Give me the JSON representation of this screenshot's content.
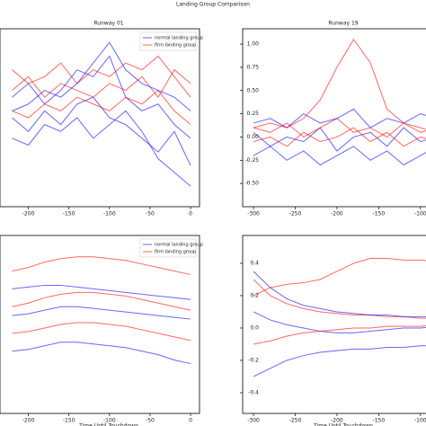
{
  "title": "Landing Group Comparison",
  "chart_data": [
    {
      "type": "line",
      "title": "Runway 01",
      "x": [
        -220,
        -200,
        -180,
        -160,
        -140,
        -120,
        -100,
        -80,
        -60,
        -40,
        -20,
        0
      ],
      "xlim": [
        -235,
        11
      ],
      "xticks": [
        -200,
        -150,
        -100,
        -50,
        0
      ],
      "ylim": [
        -0.5,
        0.8
      ],
      "legend": "upper right",
      "series": [
        {
          "name": "normal landing group",
          "color": "#0000ff",
          "values": [
            0.15,
            0.05,
            0.2,
            0.1,
            0.25,
            0.3,
            0.15,
            0.1,
            0.0,
            -0.1,
            0.05,
            -0.2
          ]
        },
        {
          "name": "firm landing group",
          "color": "#ff0000",
          "values": [
            0.35,
            0.45,
            0.3,
            0.4,
            0.35,
            0.3,
            0.4,
            0.35,
            0.45,
            0.3,
            0.5,
            0.4
          ]
        },
        {
          "name": "normal landing group",
          "color": "#0000ff",
          "values": [
            0.3,
            0.4,
            0.25,
            0.35,
            0.5,
            0.45,
            0.6,
            0.3,
            0.2,
            0.25,
            0.1,
            0.0
          ]
        },
        {
          "name": "firm landing group",
          "color": "#ff0000",
          "values": [
            0.2,
            0.15,
            0.25,
            0.2,
            0.3,
            0.25,
            0.2,
            0.3,
            0.25,
            0.35,
            0.2,
            0.1
          ]
        },
        {
          "name": "normal landing group",
          "color": "#0000ff",
          "values": [
            0.0,
            -0.05,
            0.1,
            0.05,
            0.15,
            0.0,
            0.1,
            0.2,
            0.05,
            -0.15,
            -0.25,
            -0.35
          ]
        },
        {
          "name": "firm landing group",
          "color": "#ff0000",
          "values": [
            0.5,
            0.4,
            0.45,
            0.55,
            0.4,
            0.5,
            0.45,
            0.55,
            0.5,
            0.6,
            0.45,
            0.3
          ]
        },
        {
          "name": "normal landing group",
          "color": "#0000ff",
          "values": [
            0.2,
            0.25,
            0.35,
            0.3,
            0.4,
            0.55,
            0.7,
            0.5,
            0.4,
            0.35,
            0.3,
            0.2
          ]
        }
      ]
    },
    {
      "type": "line",
      "title": "Runway 19",
      "x": [
        -300,
        -280,
        -260,
        -240,
        -220,
        -200,
        -180,
        -160,
        -140,
        -120,
        -100,
        -80
      ],
      "xlim": [
        -313,
        -89
      ],
      "xticks": [
        -300,
        -250,
        -200,
        -150,
        -100
      ],
      "ylim": [
        -0.75,
        1.165
      ],
      "yticks": [
        {
          "value": 1,
          "label": "1.00"
        },
        {
          "value": 0.75,
          "label": "0.75"
        },
        {
          "value": 0.5,
          "label": "0.50"
        },
        {
          "value": 0.25,
          "label": "0.25"
        },
        {
          "value": 0,
          "label": "0.00"
        },
        {
          "value": -0.25,
          "label": "-0.25"
        },
        {
          "value": -0.5,
          "label": "-0.50"
        }
      ],
      "series": [
        {
          "name": "normal landing group",
          "color": "#0000ff",
          "values": [
            0.05,
            -0.1,
            0.0,
            -0.05,
            0.1,
            -0.15,
            0.0,
            0.05,
            -0.1,
            0.1,
            -0.05,
            0.0
          ]
        },
        {
          "name": "firm landing group",
          "color": "#ff0000",
          "values": [
            0.1,
            0.05,
            0.15,
            0.0,
            0.1,
            0.2,
            0.05,
            0.1,
            0.0,
            0.15,
            0.05,
            0.1
          ]
        },
        {
          "name": "normal landing group",
          "color": "#0000ff",
          "values": [
            -0.2,
            -0.1,
            -0.25,
            -0.15,
            -0.3,
            -0.2,
            -0.1,
            -0.25,
            -0.15,
            -0.3,
            -0.2,
            -0.1
          ]
        },
        {
          "name": "firm landing group",
          "color": "#ff0000",
          "values": [
            -0.05,
            0.0,
            -0.1,
            0.05,
            -0.05,
            0.0,
            0.1,
            -0.05,
            0.05,
            -0.1,
            0.0,
            -0.05
          ]
        },
        {
          "name": "normal landing group",
          "color": "#0000ff",
          "values": [
            0.15,
            0.2,
            0.1,
            0.25,
            0.15,
            0.2,
            0.3,
            0.1,
            0.2,
            0.15,
            0.25,
            0.2
          ]
        },
        {
          "name": "firm landing group",
          "color": "#ff0000",
          "values": [
            0.1,
            0.15,
            0.1,
            0.2,
            0.4,
            0.75,
            1.05,
            0.8,
            0.3,
            0.15,
            0.1,
            0.05
          ]
        }
      ]
    },
    {
      "type": "line",
      "xlabel": "Time Until Touchdown",
      "x": [
        -220,
        -200,
        -180,
        -160,
        -140,
        -120,
        -100,
        -80,
        -60,
        -40,
        -20,
        0
      ],
      "xlim": [
        -235,
        11
      ],
      "xticks": [
        -200,
        -150,
        -100,
        -50,
        0
      ],
      "ylim": [
        -0.5,
        0.5
      ],
      "legend": "upper right",
      "series": [
        {
          "name": "normal landing group",
          "color": "#0000ff",
          "values": [
            0.05,
            0.06,
            0.08,
            0.1,
            0.1,
            0.09,
            0.08,
            0.07,
            0.06,
            0.05,
            0.04,
            0.03
          ]
        },
        {
          "name": "firm landing group",
          "color": "#ff0000",
          "values": [
            0.1,
            0.12,
            0.15,
            0.17,
            0.18,
            0.18,
            0.17,
            0.16,
            0.14,
            0.12,
            0.1,
            0.08
          ]
        },
        {
          "name": "normal landing group",
          "color": "#0000ff",
          "values": [
            -0.15,
            -0.14,
            -0.12,
            -0.1,
            -0.1,
            -0.11,
            -0.12,
            -0.13,
            -0.15,
            -0.17,
            -0.2,
            -0.22
          ]
        },
        {
          "name": "firm landing group",
          "color": "#ff0000",
          "values": [
            -0.05,
            -0.04,
            -0.02,
            0.0,
            0.01,
            0.01,
            0.0,
            -0.01,
            -0.03,
            -0.05,
            -0.07,
            -0.09
          ]
        },
        {
          "name": "normal landing group",
          "color": "#0000ff",
          "values": [
            0.2,
            0.21,
            0.22,
            0.22,
            0.21,
            0.2,
            0.19,
            0.18,
            0.17,
            0.16,
            0.15,
            0.14
          ]
        },
        {
          "name": "firm landing group",
          "color": "#ff0000",
          "values": [
            0.3,
            0.32,
            0.35,
            0.37,
            0.38,
            0.38,
            0.37,
            0.36,
            0.34,
            0.32,
            0.3,
            0.28
          ]
        }
      ]
    },
    {
      "type": "line",
      "xlabel": "Time Until Touchdown",
      "x": [
        -300,
        -280,
        -260,
        -240,
        -220,
        -200,
        -180,
        -160,
        -140,
        -120,
        -100,
        -80
      ],
      "xlim": [
        -313,
        -89
      ],
      "xticks": [
        -300,
        -250,
        -200,
        -150,
        -100
      ],
      "ylim": [
        -0.528,
        0.572
      ],
      "yticks": [
        0.4,
        0.2,
        {
          "value": 0,
          "label": "0.0"
        },
        -0.2,
        -0.4
      ],
      "series": [
        {
          "name": "normal landing group",
          "color": "#0000ff",
          "values": [
            0.1,
            0.05,
            0.02,
            0.0,
            -0.02,
            -0.03,
            -0.03,
            -0.02,
            -0.01,
            0.0,
            0.0,
            0.01
          ]
        },
        {
          "name": "firm landing group",
          "color": "#ff0000",
          "values": [
            0.3,
            0.2,
            0.15,
            0.12,
            0.1,
            0.09,
            0.08,
            0.08,
            0.07,
            0.07,
            0.06,
            0.06
          ]
        },
        {
          "name": "normal landing group",
          "color": "#0000ff",
          "values": [
            -0.3,
            -0.25,
            -0.2,
            -0.17,
            -0.15,
            -0.14,
            -0.13,
            -0.13,
            -0.12,
            -0.12,
            -0.11,
            -0.11
          ]
        },
        {
          "name": "firm landing group",
          "color": "#ff0000",
          "values": [
            -0.1,
            -0.08,
            -0.05,
            -0.03,
            -0.02,
            -0.01,
            0.0,
            0.0,
            0.01,
            0.01,
            0.01,
            0.02
          ]
        },
        {
          "name": "normal landing group",
          "color": "#0000ff",
          "values": [
            0.35,
            0.25,
            0.18,
            0.14,
            0.12,
            0.1,
            0.09,
            0.08,
            0.08,
            0.07,
            0.07,
            0.07
          ]
        },
        {
          "name": "firm landing group",
          "color": "#ff0000",
          "values": [
            0.2,
            0.25,
            0.27,
            0.28,
            0.3,
            0.35,
            0.4,
            0.43,
            0.43,
            0.42,
            0.42,
            0.41
          ]
        }
      ]
    }
  ]
}
